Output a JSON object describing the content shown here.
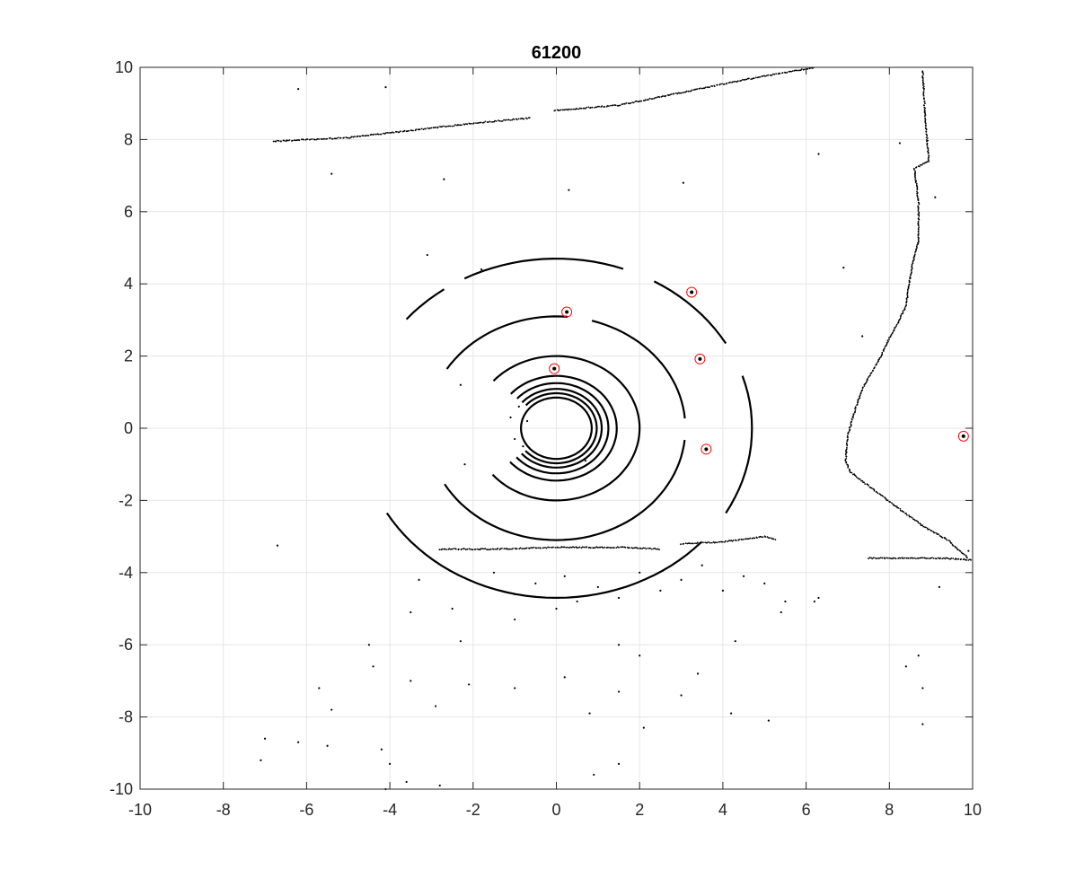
{
  "figure": {
    "title": "61200"
  },
  "chart_data": {
    "type": "scatter",
    "title": "61200",
    "xlabel": "",
    "ylabel": "",
    "xlim": [
      -10,
      10
    ],
    "ylim": [
      -10,
      10
    ],
    "xticks": [
      -10,
      -8,
      -6,
      -4,
      -2,
      0,
      2,
      4,
      6,
      8,
      10
    ],
    "yticks": [
      -10,
      -8,
      -6,
      -4,
      -2,
      0,
      2,
      4,
      6,
      8,
      10
    ],
    "xtick_labels": [
      "-10",
      "-8",
      "-6",
      "-4",
      "-2",
      "0",
      "2",
      "4",
      "6",
      "8",
      "10"
    ],
    "ytick_labels": [
      "-10",
      "-8",
      "-6",
      "-4",
      "-2",
      "0",
      "2",
      "4",
      "6",
      "8",
      "10"
    ],
    "grid": true,
    "colors": {
      "points": "#000000",
      "markers": "#ff0000",
      "grid": "#e6e6e6",
      "axes": "#262626"
    },
    "rings": [
      {
        "center": [
          0,
          0
        ],
        "radius": 0.85,
        "gap": "none"
      },
      {
        "center": [
          0,
          0
        ],
        "radius": 0.97,
        "gap": "left"
      },
      {
        "center": [
          0,
          0
        ],
        "radius": 1.09,
        "gap": "left"
      },
      {
        "center": [
          0,
          0
        ],
        "radius": 1.25,
        "gap": "left"
      },
      {
        "center": [
          0,
          0
        ],
        "radius": 1.45,
        "gap": "left"
      },
      {
        "center": [
          0,
          0
        ],
        "radius": 2.0,
        "gap": "left"
      },
      {
        "center": [
          0,
          0
        ],
        "radius": 3.1,
        "gap": "left-partial"
      },
      {
        "center": [
          0,
          0
        ],
        "radius": 4.7,
        "gap": "left-top"
      }
    ],
    "series": [
      {
        "type": "polyline",
        "points": [
          [
            -6.8,
            7.95
          ],
          [
            -5.0,
            8.05
          ],
          [
            -3.5,
            8.25
          ],
          [
            -2.0,
            8.45
          ],
          [
            -0.6,
            8.6
          ]
        ]
      },
      {
        "type": "polyline",
        "points": [
          [
            -0.05,
            8.8
          ],
          [
            1.5,
            8.95
          ],
          [
            3.0,
            9.3
          ],
          [
            4.5,
            9.65
          ],
          [
            6.2,
            10.0
          ]
        ]
      },
      {
        "type": "polyline",
        "points": [
          [
            8.8,
            9.9
          ],
          [
            8.85,
            8.8
          ],
          [
            8.95,
            7.4
          ],
          [
            8.6,
            7.2
          ],
          [
            8.7,
            6.3
          ],
          [
            8.7,
            5.2
          ],
          [
            8.55,
            4.5
          ],
          [
            8.5,
            4.2
          ],
          [
            8.4,
            3.4
          ],
          [
            8.2,
            2.9
          ],
          [
            8.0,
            2.5
          ],
          [
            7.8,
            2.0
          ],
          [
            7.4,
            1.2
          ],
          [
            7.2,
            0.6
          ],
          [
            7.0,
            -0.2
          ],
          [
            6.95,
            -0.9
          ],
          [
            7.05,
            -1.2
          ],
          [
            7.5,
            -1.6
          ],
          [
            8.2,
            -2.2
          ],
          [
            8.8,
            -2.7
          ],
          [
            9.4,
            -3.1
          ],
          [
            9.9,
            -3.6
          ]
        ]
      },
      {
        "type": "polyline",
        "points": [
          [
            7.5,
            -3.6
          ],
          [
            8.5,
            -3.6
          ],
          [
            9.3,
            -3.6
          ],
          [
            10.0,
            -3.65
          ]
        ]
      },
      {
        "type": "polyline",
        "points": [
          [
            -2.8,
            -3.35
          ],
          [
            -1.5,
            -3.35
          ],
          [
            0.0,
            -3.3
          ],
          [
            1.5,
            -3.3
          ],
          [
            2.5,
            -3.35
          ]
        ]
      },
      {
        "type": "polyline",
        "points": [
          [
            3.0,
            -3.2
          ],
          [
            4.0,
            -3.15
          ],
          [
            5.0,
            -3.0
          ],
          [
            5.3,
            -3.1
          ]
        ]
      },
      {
        "type": "scatter",
        "points": [
          [
            -6.2,
            9.4
          ],
          [
            -5.4,
            7.05
          ],
          [
            -4.1,
            9.45
          ],
          [
            -2.7,
            6.9
          ],
          [
            0.3,
            6.6
          ],
          [
            3.05,
            6.8
          ],
          [
            6.3,
            7.6
          ],
          [
            6.9,
            4.45
          ],
          [
            7.35,
            2.55
          ],
          [
            8.25,
            7.9
          ],
          [
            9.1,
            6.4
          ],
          [
            -3.1,
            4.8
          ],
          [
            -1.8,
            4.4
          ],
          [
            -2.3,
            1.2
          ],
          [
            -2.2,
            -1.0
          ],
          [
            -0.8,
            -0.5
          ],
          [
            -0.9,
            0.6
          ],
          [
            -0.7,
            0.2
          ],
          [
            -1.0,
            -0.3
          ],
          [
            -1.1,
            0.3
          ],
          [
            0.7,
            -0.9
          ],
          [
            -6.7,
            -3.25
          ],
          [
            -3.3,
            -4.2
          ],
          [
            -2.5,
            -5.0
          ],
          [
            -1.5,
            -4.0
          ],
          [
            -1.0,
            -4.6
          ],
          [
            -0.5,
            -4.3
          ],
          [
            0.2,
            -4.1
          ],
          [
            0.5,
            -4.8
          ],
          [
            1.0,
            -4.4
          ],
          [
            1.5,
            -4.7
          ],
          [
            2.0,
            -4.0
          ],
          [
            2.5,
            -4.5
          ],
          [
            3.0,
            -4.2
          ],
          [
            3.5,
            -3.8
          ],
          [
            4.0,
            -4.5
          ],
          [
            4.5,
            -4.1
          ],
          [
            5.0,
            -4.3
          ],
          [
            5.5,
            -4.8
          ],
          [
            -3.5,
            -5.1
          ],
          [
            -2.3,
            -5.9
          ],
          [
            -1.0,
            -5.3
          ],
          [
            0.0,
            -5.0
          ],
          [
            1.5,
            -6.0
          ],
          [
            2.0,
            -6.3
          ],
          [
            4.3,
            -5.9
          ],
          [
            5.4,
            -5.1
          ],
          [
            6.2,
            -4.8
          ],
          [
            -4.5,
            -6.0
          ],
          [
            -5.7,
            -7.2
          ],
          [
            -5.4,
            -7.8
          ],
          [
            -4.4,
            -6.6
          ],
          [
            -3.5,
            -7.0
          ],
          [
            -2.9,
            -7.7
          ],
          [
            -2.1,
            -7.1
          ],
          [
            -1.0,
            -7.2
          ],
          [
            0.2,
            -6.9
          ],
          [
            0.8,
            -7.9
          ],
          [
            1.5,
            -7.3
          ],
          [
            2.1,
            -8.3
          ],
          [
            3.0,
            -7.4
          ],
          [
            3.4,
            -6.8
          ],
          [
            4.2,
            -7.9
          ],
          [
            5.1,
            -8.1
          ],
          [
            -7.0,
            -8.6
          ],
          [
            -6.2,
            -8.7
          ],
          [
            -5.5,
            -8.8
          ],
          [
            -4.2,
            -8.9
          ],
          [
            -4.0,
            -9.3
          ],
          [
            -3.6,
            -9.8
          ],
          [
            -2.8,
            -9.9
          ],
          [
            -7.1,
            -9.2
          ],
          [
            -4.1,
            -10.0
          ],
          [
            0.9,
            -9.6
          ],
          [
            1.5,
            -9.3
          ],
          [
            8.4,
            -6.6
          ],
          [
            8.7,
            -6.3
          ],
          [
            8.8,
            -7.2
          ],
          [
            8.8,
            -8.2
          ],
          [
            9.2,
            -4.4
          ],
          [
            9.9,
            -3.4
          ],
          [
            6.3,
            -4.7
          ]
        ]
      },
      {
        "type": "highlight",
        "name": "",
        "points": [
          [
            0.25,
            3.22
          ],
          [
            3.25,
            3.77
          ],
          [
            3.45,
            1.92
          ],
          [
            -0.05,
            1.65
          ],
          [
            3.6,
            -0.58
          ],
          [
            9.78,
            -0.22
          ]
        ]
      }
    ]
  }
}
